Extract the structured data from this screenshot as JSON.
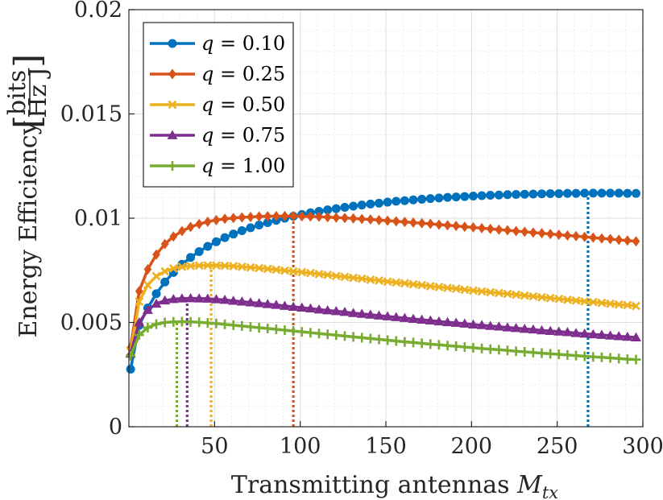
{
  "chart_data": {
    "type": "line",
    "title": "",
    "xlabel_text": "Transmitting antennas ",
    "xlabel_var": "M",
    "xlabel_sub": "tx",
    "ylabel_text": "Energy Efficiency",
    "ylabel_unit_num": "bits",
    "ylabel_unit_den": "Hz J",
    "xlim": [
      0,
      300
    ],
    "ylim": [
      0,
      0.02
    ],
    "grid": true,
    "minor_grid": true,
    "legend_position": "top-left",
    "x_ticks": [
      50,
      100,
      150,
      200,
      250,
      300
    ],
    "x_tick_labels": [
      "50",
      "100",
      "150",
      "200",
      "250",
      "300"
    ],
    "y_ticks": [
      0,
      0.005,
      0.01,
      0.015,
      0.02
    ],
    "y_tick_labels": [
      "0",
      "0.005",
      "0.01",
      "0.015",
      "0.02"
    ],
    "x": [
      1,
      6,
      11,
      16,
      21,
      26,
      31,
      36,
      41,
      46,
      51,
      56,
      61,
      66,
      71,
      76,
      81,
      86,
      91,
      96,
      101,
      106,
      111,
      116,
      121,
      126,
      131,
      136,
      141,
      146,
      151,
      156,
      161,
      166,
      171,
      176,
      181,
      186,
      191,
      196,
      201,
      206,
      211,
      216,
      221,
      226,
      231,
      236,
      241,
      246,
      251,
      256,
      261,
      266,
      271,
      276,
      281,
      286,
      291,
      296
    ],
    "series": [
      {
        "name": "q = 0.10",
        "legend_var": "q",
        "legend_value": " = 0.10",
        "color": "#0072BD",
        "marker": "circle",
        "optimum_x": 268,
        "values": [
          0.00276,
          0.00486,
          0.0057,
          0.00638,
          0.00694,
          0.0074,
          0.00779,
          0.00812,
          0.0084,
          0.00865,
          0.00887,
          0.00907,
          0.00924,
          0.0094,
          0.00954,
          0.00967,
          0.00979,
          0.0099,
          0.01,
          0.01009,
          0.01018,
          0.01026,
          0.01033,
          0.0104,
          0.01046,
          0.01052,
          0.01058,
          0.01063,
          0.01068,
          0.01072,
          0.01077,
          0.01081,
          0.01084,
          0.01088,
          0.01091,
          0.01094,
          0.01097,
          0.011,
          0.01102,
          0.01104,
          0.01106,
          0.01108,
          0.0111,
          0.01111,
          0.01113,
          0.01114,
          0.01115,
          0.01116,
          0.01117,
          0.01118,
          0.01118,
          0.01119,
          0.01119,
          0.0112,
          0.0112,
          0.0112,
          0.0112,
          0.0112,
          0.01119,
          0.01119
        ]
      },
      {
        "name": "q = 0.25",
        "legend_var": "q",
        "legend_value": " = 0.25",
        "color": "#D95319",
        "marker": "diamond",
        "optimum_x": 96,
        "values": [
          0.0038,
          0.0065,
          0.00755,
          0.00826,
          0.00876,
          0.00912,
          0.00938,
          0.00958,
          0.00972,
          0.00983,
          0.00991,
          0.00997,
          0.01001,
          0.01004,
          0.01006,
          0.01008,
          0.01009,
          0.0101,
          0.0101,
          0.0101,
          0.01009,
          0.01008,
          0.01007,
          0.01005,
          0.01003,
          0.01001,
          0.00999,
          0.00996,
          0.00994,
          0.00991,
          0.00988,
          0.00985,
          0.00982,
          0.00979,
          0.00976,
          0.00973,
          0.00969,
          0.00966,
          0.00963,
          0.00959,
          0.00956,
          0.00952,
          0.00949,
          0.00945,
          0.00942,
          0.00938,
          0.00935,
          0.00931,
          0.00928,
          0.00924,
          0.00921,
          0.00917,
          0.00914,
          0.0091,
          0.00907,
          0.00903,
          0.009,
          0.00896,
          0.00893,
          0.00889
        ]
      },
      {
        "name": "q = 0.50",
        "legend_var": "q",
        "legend_value": " = 0.50",
        "color": "#EDB120",
        "marker": "x",
        "optimum_x": 48,
        "values": [
          0.0036,
          0.006,
          0.0068,
          0.00722,
          0.00745,
          0.00759,
          0.00767,
          0.00771,
          0.00773,
          0.00774,
          0.00773,
          0.00772,
          0.0077,
          0.00767,
          0.00764,
          0.00761,
          0.00757,
          0.00753,
          0.00749,
          0.00745,
          0.00741,
          0.00737,
          0.00732,
          0.00728,
          0.00723,
          0.00719,
          0.00714,
          0.0071,
          0.00705,
          0.00701,
          0.00696,
          0.00692,
          0.00688,
          0.00683,
          0.00679,
          0.00674,
          0.0067,
          0.00666,
          0.00662,
          0.00657,
          0.00653,
          0.00649,
          0.00645,
          0.00641,
          0.00637,
          0.00633,
          0.00629,
          0.00625,
          0.00621,
          0.00617,
          0.00613,
          0.00609,
          0.00605,
          0.00601,
          0.00598,
          0.00594,
          0.0059,
          0.00586,
          0.00583,
          0.00579
        ]
      },
      {
        "name": "q = 0.75",
        "legend_var": "q",
        "legend_value": " = 0.75",
        "color": "#7E2F8E",
        "marker": "triangle",
        "optimum_x": 34,
        "values": [
          0.0035,
          0.005,
          0.0056,
          0.0059,
          0.00605,
          0.00612,
          0.00615,
          0.00616,
          0.00615,
          0.00614,
          0.00611,
          0.00608,
          0.00604,
          0.006,
          0.00596,
          0.00592,
          0.00588,
          0.00584,
          0.00579,
          0.00575,
          0.00571,
          0.00567,
          0.00562,
          0.00558,
          0.00554,
          0.0055,
          0.00545,
          0.00541,
          0.00537,
          0.00533,
          0.00529,
          0.00525,
          0.00521,
          0.00517,
          0.00513,
          0.00509,
          0.00505,
          0.00501,
          0.00498,
          0.00494,
          0.0049,
          0.00487,
          0.00483,
          0.0048,
          0.00476,
          0.00473,
          0.00469,
          0.00466,
          0.00462,
          0.00459,
          0.00456,
          0.00453,
          0.00449,
          0.00446,
          0.00443,
          0.0044,
          0.00437,
          0.00434,
          0.00431,
          0.00428
        ]
      },
      {
        "name": "q = 1.00",
        "legend_var": "q",
        "legend_value": " = 1.00",
        "color": "#77AC30",
        "marker": "plus",
        "optimum_x": 28,
        "values": [
          0.0034,
          0.0044,
          0.00475,
          0.00492,
          0.005,
          0.00503,
          0.00504,
          0.00503,
          0.00501,
          0.00498,
          0.00495,
          0.00491,
          0.00487,
          0.00483,
          0.00479,
          0.00475,
          0.00471,
          0.00467,
          0.00463,
          0.00459,
          0.00455,
          0.00451,
          0.00447,
          0.00443,
          0.00439,
          0.00435,
          0.00431,
          0.00427,
          0.00423,
          0.00419,
          0.00415,
          0.00411,
          0.00407,
          0.00404,
          0.004,
          0.00396,
          0.00393,
          0.00389,
          0.00386,
          0.00382,
          0.00379,
          0.00375,
          0.00372,
          0.00369,
          0.00366,
          0.00362,
          0.00359,
          0.00356,
          0.00353,
          0.0035,
          0.00347,
          0.00344,
          0.00341,
          0.00338,
          0.00335,
          0.00333,
          0.0033,
          0.00327,
          0.00324,
          0.00322
        ]
      }
    ]
  }
}
